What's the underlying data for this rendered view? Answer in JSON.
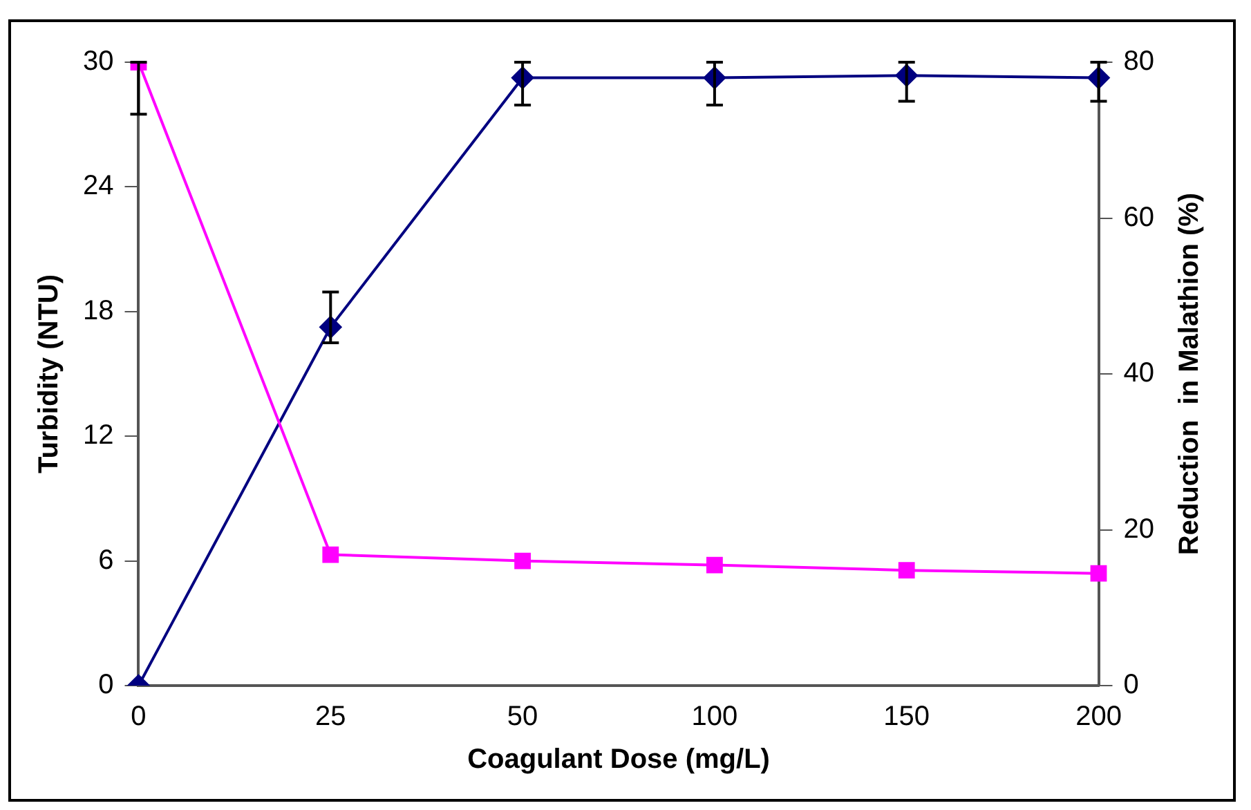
{
  "chart_data": {
    "type": "line",
    "xlabel": "Coagulant Dose (mg/L)",
    "ylabel": "Turbidity (NTU)",
    "y2label": "Reduction  in Malathion (%)",
    "categories": [
      "0",
      "25",
      "50",
      "100",
      "150",
      "200"
    ],
    "series": [
      {
        "color": "#ff00ff",
        "marker": "square",
        "values": [
          30,
          6.3,
          6.0,
          5.8,
          5.55,
          5.4
        ],
        "errors": [
          [
            27.5,
            30
          ],
          null,
          null,
          null,
          null,
          null
        ]
      },
      {
        "color": "#000080",
        "marker": "diamond",
        "axis": "y2",
        "values": [
          0,
          46,
          78,
          78,
          78.3,
          78
        ],
        "errors": [
          null,
          [
            44,
            50.5
          ],
          [
            74.5,
            80
          ],
          [
            74.5,
            80
          ],
          [
            75,
            80
          ],
          [
            75,
            80
          ]
        ]
      }
    ],
    "ylim": [
      0,
      30
    ],
    "yticks": [
      0,
      6,
      12,
      18,
      24,
      30
    ],
    "y2lim": [
      0,
      80
    ],
    "y2ticks": [
      0,
      20,
      40,
      60,
      80
    ],
    "grid": false,
    "legend": false,
    "line_style": "solid"
  }
}
